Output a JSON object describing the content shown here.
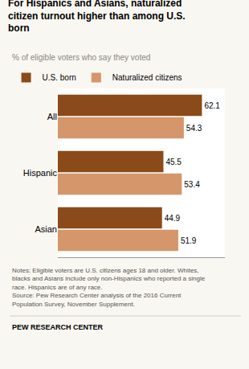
{
  "chart_data": {
    "type": "bar",
    "orientation": "horizontal",
    "title": "For Hispanics and Asians, naturalized\ncitizen turnout higher than among U.S.\nborn",
    "subtitle": "% of eligible voters who say they voted",
    "categories": [
      "All",
      "Hispanic",
      "Asian"
    ],
    "series": [
      {
        "name": "U.S. born",
        "color": "#8B4A1A",
        "values": [
          62.1,
          45.5,
          44.9
        ]
      },
      {
        "name": "Naturalized citizens",
        "color": "#D4966A",
        "values": [
          54.3,
          53.4,
          51.9
        ]
      }
    ],
    "xlim": [
      0,
      72
    ],
    "tick_labels": "y",
    "data_labels": true,
    "grid": false,
    "legend": "upper left",
    "annotations": [
      "Notes: Eligible voters are U.S. citizens ages 18 and older. Whites,\nblacks and Asians include only non-Hispanics who reported a single\nrace. Hispanics are of any race.\nSource: Pew Research Center analysis of the 2016 Current\nPopulation Survey, November Supplement.",
      "PEW RESEARCH CENTER"
    ]
  }
}
